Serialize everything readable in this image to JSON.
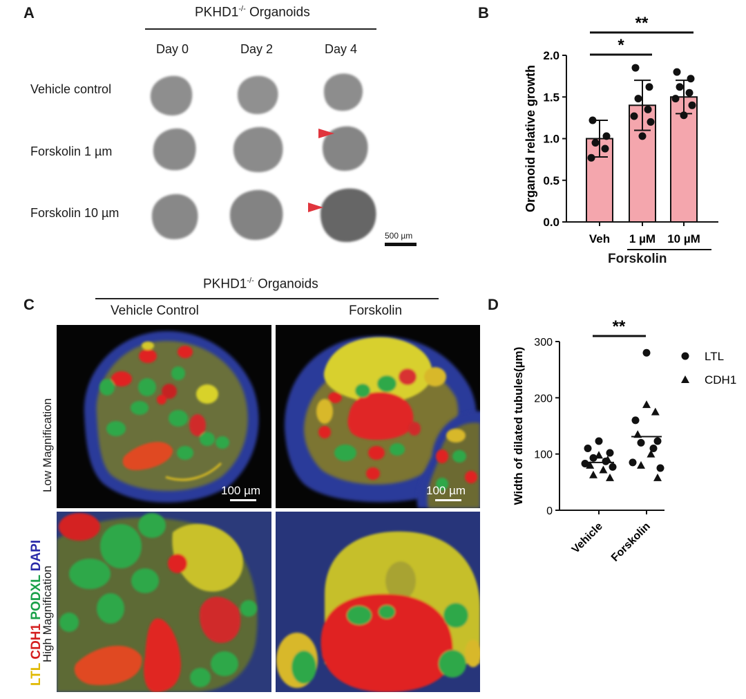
{
  "panelA": {
    "label": "A",
    "title_main": "PKHD1",
    "title_sup": "-/-",
    "title_rest": " Organoids",
    "columns": [
      "Day 0",
      "Day 2",
      "Day 4"
    ],
    "rows": [
      "Vehicle control",
      "Forskolin 1 µm",
      "Forskolin 10 µm"
    ],
    "scale_bar": "500 µm"
  },
  "panelB": {
    "label": "B",
    "forskolin_label": "Forskolin",
    "sig_star1": "*",
    "sig_star2": "**"
  },
  "panelC": {
    "label": "C",
    "title_main": "PKHD1",
    "title_sup": "-/-",
    "title_rest": "  Organoids",
    "columns": [
      "Vehicle Control",
      "Forskolin"
    ],
    "row_low": "Low Magnification",
    "row_high": "High Magnification",
    "stain_labels": [
      {
        "text": "LTL",
        "color": "#e0b800"
      },
      {
        "text": " CDH1",
        "color": "#d42020"
      },
      {
        "text": " PODXL",
        "color": "#18a048"
      },
      {
        "text": " DAPI",
        "color": "#2a2aa8"
      }
    ],
    "scale_bar": "100 µm"
  },
  "panelD": {
    "label": "D",
    "sig_stars": "**"
  },
  "chart_data": [
    {
      "type": "bar",
      "ylabel": "Organoid relative growth",
      "ylim": [
        0,
        2.0
      ],
      "yticks": [
        "0.0",
        "0.5",
        "1.0",
        "1.5",
        "2.0"
      ],
      "categories": [
        "Veh",
        "1 µM",
        "10 µM"
      ],
      "group_label": "Forskolin",
      "values": [
        1.0,
        1.4,
        1.5
      ],
      "errors": [
        0.22,
        0.3,
        0.2
      ],
      "points": [
        [
          1.22,
          1.03,
          0.95,
          0.88,
          0.77
        ],
        [
          1.85,
          1.62,
          1.48,
          1.35,
          1.27,
          1.2,
          1.03
        ],
        [
          1.8,
          1.72,
          1.62,
          1.55,
          1.48,
          1.4,
          1.28
        ]
      ],
      "significance": [
        {
          "from": 0,
          "to": 1,
          "label": "*"
        },
        {
          "from": 0,
          "to": 2,
          "label": "**"
        }
      ],
      "bar_color": "#f4a6ad",
      "grid": false
    },
    {
      "type": "scatter",
      "ylabel": "Width of dilated tubules(µm)",
      "ylim": [
        0,
        300
      ],
      "yticks": [
        "0",
        "100",
        "200",
        "300"
      ],
      "categories": [
        "Vehicle",
        "Forskolin"
      ],
      "medians": [
        85,
        131
      ],
      "series": [
        {
          "name": "LTL",
          "marker": "circle",
          "values": [
            [
              123,
              110,
              102,
              93,
              87,
              83,
              77
            ],
            [
              280,
              160,
              123,
              120,
              110,
              85,
              75
            ]
          ]
        },
        {
          "name": "CDH1",
          "marker": "triangle",
          "values": [
            [
              98,
              90,
              80,
              72,
              63,
              58
            ],
            [
              188,
              175,
              135,
              100,
              80,
              58
            ]
          ]
        }
      ],
      "significance": [
        {
          "from": 0,
          "to": 1,
          "label": "**"
        }
      ],
      "grid": false
    }
  ]
}
